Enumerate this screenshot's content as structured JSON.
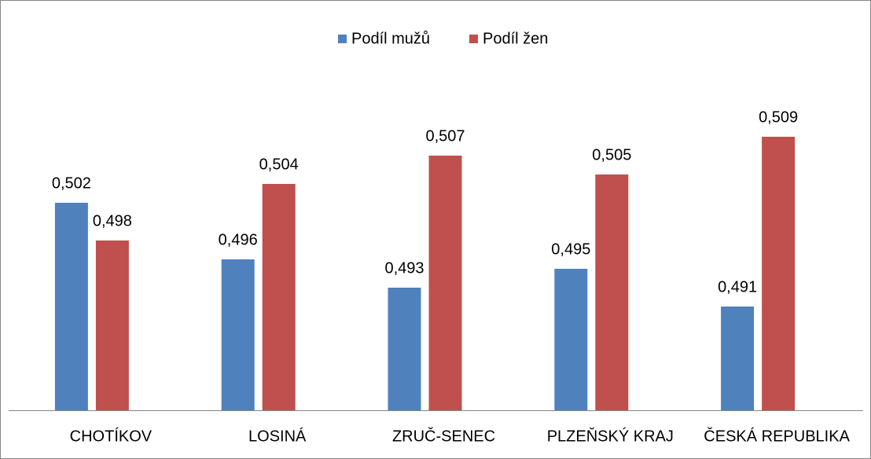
{
  "chart_data": {
    "type": "bar",
    "categories": [
      "CHOTÍKOV",
      "LOSINÁ",
      "ZRUČ-SENEC",
      "PLZEŇSKÝ KRAJ",
      "ČESKÁ REPUBLIKA"
    ],
    "series": [
      {
        "name": "Podíl mužů",
        "color": "#4f81bd",
        "values": [
          0.502,
          0.496,
          0.493,
          0.495,
          0.491
        ],
        "value_labels": [
          "0,502",
          "0,496",
          "0,493",
          "0,495",
          "0,491"
        ]
      },
      {
        "name": "Podíl žen",
        "color": "#c0504d",
        "values": [
          0.498,
          0.504,
          0.507,
          0.505,
          0.509
        ],
        "value_labels": [
          "0,498",
          "0,504",
          "0,507",
          "0,505",
          "0,509"
        ]
      }
    ],
    "ylim": [
      0.48,
      0.515
    ],
    "legend": "top"
  }
}
